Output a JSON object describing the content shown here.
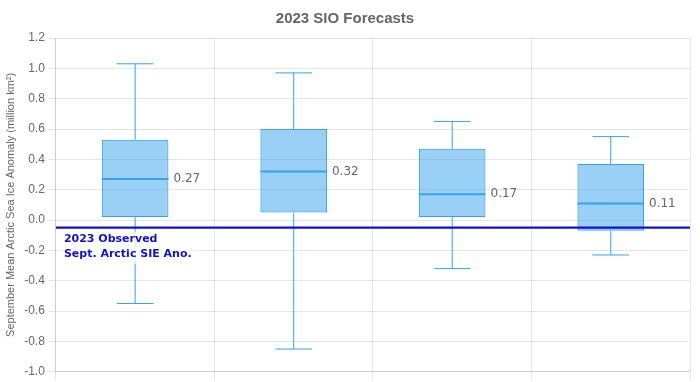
{
  "chart_data": {
    "type": "box",
    "title": "2023 SIO Forecasts",
    "ylabel": "September Mean Arctic Sea Ice Anomaly (million km²)",
    "categories": [
      null,
      null,
      null,
      null
    ],
    "whisker_low": [
      -0.55,
      -0.85,
      -0.32,
      -0.23
    ],
    "q1": [
      0.02,
      0.05,
      0.02,
      -0.07
    ],
    "median": [
      0.27,
      0.32,
      0.17,
      0.11
    ],
    "q3": [
      0.53,
      0.6,
      0.47,
      0.37
    ],
    "whisker_high": [
      1.03,
      0.97,
      0.65,
      0.55
    ],
    "data_labels": true,
    "annotations": [
      {
        "type": "hline",
        "y": -0.05,
        "label": [
          "2023 Observed",
          "Sept. Arctic SIE Ano."
        ],
        "color": "#1010cc"
      }
    ],
    "ylim": [
      -1.0,
      1.2
    ],
    "yticks": [
      {
        "value": -1.0,
        "label": "-1.0"
      },
      -0.8,
      -0.6,
      -0.4,
      -0.2,
      {
        "value": 0.0,
        "label": "0.0"
      },
      0.2,
      0.4,
      0.6,
      0.8,
      {
        "value": 1.0,
        "label": "1.0"
      },
      1.2
    ],
    "grid": true,
    "tick_labels": "y"
  }
}
